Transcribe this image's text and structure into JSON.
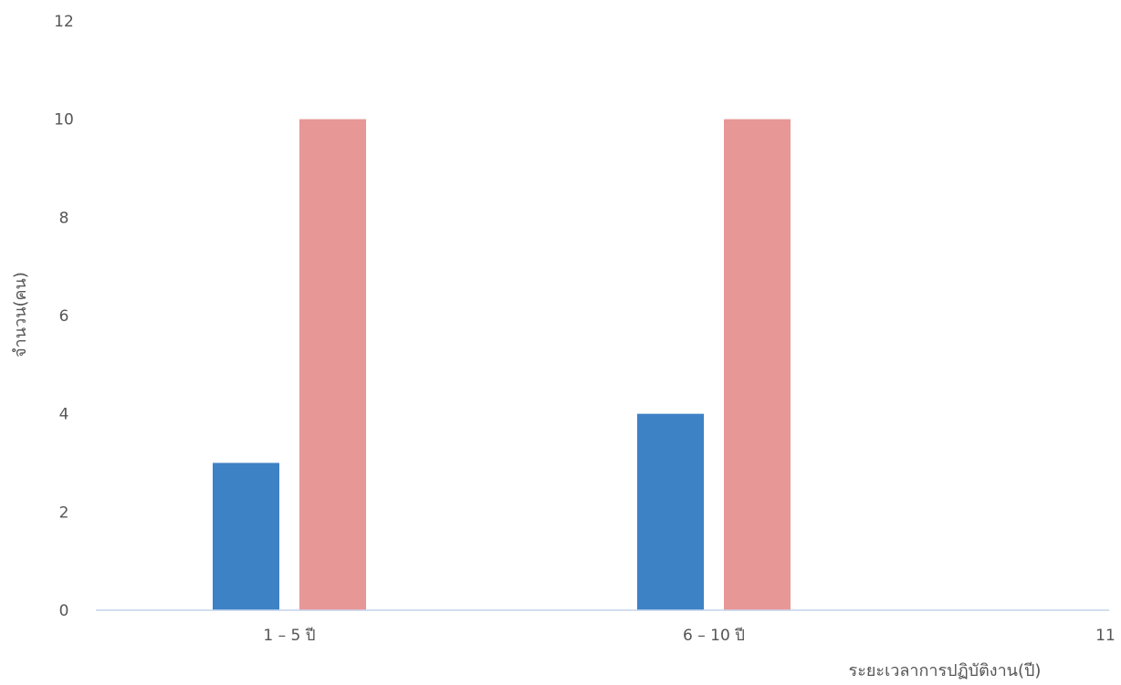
{
  "chart_data": {
    "type": "bar",
    "categories": [
      "1 – 5 ปี",
      "6 – 10 ปี",
      "11"
    ],
    "series": [
      {
        "values": [
          3,
          4,
          0
        ],
        "color": "#3e82c6"
      },
      {
        "values": [
          10,
          10,
          0
        ],
        "color": "#e89797"
      }
    ],
    "title": "",
    "xlabel": "ระยะเวลาการปฏิบัติงาน(ปี)",
    "ylabel": "จำนวน(คน)",
    "ylim": [
      0,
      12
    ],
    "yticks": [
      0,
      2,
      4,
      6,
      8,
      10,
      12
    ],
    "grid": false,
    "axis_color": "#c5d3ea"
  }
}
